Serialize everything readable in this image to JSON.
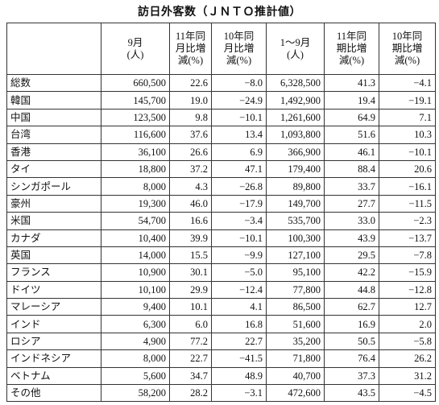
{
  "title": "訪日外客数（ＪＮＴＯ推計値）",
  "table": {
    "headers": [
      "",
      "9月\n(人)",
      "11年同\n月比増\n減(%)",
      "10年同\n月比増\n減(%)",
      "1～9月\n(人)",
      "11年同\n期比増\n減(%)",
      "10年同\n期比増\n減(%)"
    ],
    "rows": [
      [
        "総数",
        "660,500",
        "22.6",
        "−8.0",
        "6,328,500",
        "41.3",
        "−4.1"
      ],
      [
        "韓国",
        "145,700",
        "19.0",
        "−24.9",
        "1,492,900",
        "19.4",
        "−19.1"
      ],
      [
        "中国",
        "123,500",
        "9.8",
        "−10.1",
        "1,261,600",
        "64.9",
        "7.1"
      ],
      [
        "台湾",
        "116,600",
        "37.6",
        "13.4",
        "1,093,800",
        "51.6",
        "10.3"
      ],
      [
        "香港",
        "36,100",
        "26.6",
        "6.9",
        "366,900",
        "46.1",
        "−10.1"
      ],
      [
        "タイ",
        "18,800",
        "37.2",
        "47.1",
        "179,400",
        "88.4",
        "20.6"
      ],
      [
        "シンガポール",
        "8,000",
        "4.3",
        "−26.8",
        "89,800",
        "33.7",
        "−16.1"
      ],
      [
        "豪州",
        "19,300",
        "46.0",
        "−17.9",
        "149,700",
        "27.7",
        "−11.5"
      ],
      [
        "米国",
        "54,700",
        "16.6",
        "−3.4",
        "535,700",
        "33.0",
        "−2.3"
      ],
      [
        "カナダ",
        "10,400",
        "39.9",
        "−10.1",
        "100,300",
        "43.9",
        "−13.7"
      ],
      [
        "英国",
        "14,000",
        "15.5",
        "−9.9",
        "127,100",
        "29.5",
        "−7.8"
      ],
      [
        "フランス",
        "10,900",
        "30.1",
        "−5.0",
        "95,100",
        "42.2",
        "−15.9"
      ],
      [
        "ドイツ",
        "10,100",
        "29.9",
        "−12.4",
        "77,800",
        "44.8",
        "−12.8"
      ],
      [
        "マレーシア",
        "9,400",
        "10.1",
        "4.1",
        "86,500",
        "62.7",
        "12.7"
      ],
      [
        "インド",
        "6,300",
        "6.0",
        "16.8",
        "51,600",
        "16.9",
        "2.0"
      ],
      [
        "ロシア",
        "4,900",
        "77.2",
        "22.7",
        "35,200",
        "50.5",
        "−5.8"
      ],
      [
        "インドネシア",
        "8,000",
        "22.7",
        "−41.5",
        "71,800",
        "76.4",
        "26.2"
      ],
      [
        "ベトナム",
        "5,600",
        "34.7",
        "48.9",
        "40,700",
        "37.3",
        "31.2"
      ],
      [
        "その他",
        "58,200",
        "28.2",
        "−3.1",
        "472,600",
        "43.5",
        "−4.5"
      ]
    ]
  }
}
